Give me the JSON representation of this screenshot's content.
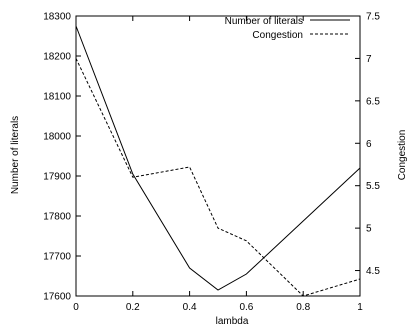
{
  "chart_data": {
    "type": "line",
    "xlabel": "lambda",
    "ylabel_left": "Number of literals",
    "ylabel_right": "Congestion",
    "xlim": [
      0,
      1
    ],
    "ylim_left": [
      17600,
      18300
    ],
    "ylim_right": [
      4.2,
      7.5
    ],
    "xticks": [
      "0",
      "0.2",
      "0.4",
      "0.6",
      "0.8",
      "1"
    ],
    "yticks_left": [
      "17600",
      "17700",
      "17800",
      "17900",
      "18000",
      "18100",
      "18200",
      "18300"
    ],
    "yticks_right": [
      "4.5",
      "5",
      "5.5",
      "6",
      "6.5",
      "7",
      "7.5"
    ],
    "legend_position": "top-right",
    "grid": false,
    "series": [
      {
        "name": "Number of literals",
        "axis": "left",
        "style": "solid",
        "x": [
          0,
          0.2,
          0.4,
          0.5,
          0.6,
          1.0
        ],
        "y": [
          18275,
          17905,
          17670,
          17615,
          17655,
          17920
        ]
      },
      {
        "name": "Congestion",
        "axis": "right",
        "style": "dashed",
        "x": [
          0,
          0.2,
          0.4,
          0.5,
          0.6,
          0.8,
          1.0
        ],
        "y": [
          7.0,
          5.6,
          5.72,
          5.0,
          4.85,
          4.2,
          4.4
        ]
      }
    ]
  }
}
